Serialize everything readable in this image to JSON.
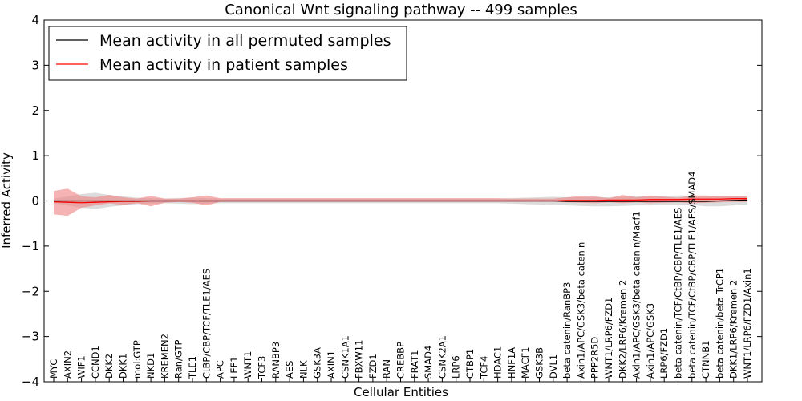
{
  "chart_data": {
    "type": "line",
    "title": "Canonical Wnt signaling pathway -- 499 samples",
    "xlabel": "Cellular Entities",
    "ylabel": "Inferred Activity",
    "ylim": [
      -4,
      4
    ],
    "yticks": [
      4,
      3,
      2,
      1,
      0,
      -1,
      -2,
      -3,
      -4
    ],
    "ytick_labels": [
      "4",
      "3",
      "2",
      "1",
      "0",
      "−1",
      "−2",
      "−3",
      "−4"
    ],
    "grid": false,
    "legend_position": "top-left",
    "colors": {
      "permuted": "#000000",
      "patient": "#ff0000",
      "permuted_band": "#bfbfbf",
      "patient_band": "#f08080"
    },
    "categories": [
      "MYC",
      "AXIN2",
      "WIF1",
      "CCND1",
      "DKK2",
      "DKK1",
      "mol:GTP",
      "NKD1",
      "KREMEN2",
      "Ran/GTP",
      "TLE1",
      "CtBP/CBP/TCF/TLE1/AES",
      "APC",
      "LEF1",
      "WNT1",
      "TCF3",
      "RANBP3",
      "AES",
      "NLK",
      "GSK3A",
      "AXIN1",
      "CSNK1A1",
      "FBXW11",
      "FZD1",
      "RAN",
      "CREBBP",
      "FRAT1",
      "SMAD4",
      "CSNK2A1",
      "LRP6",
      "CTBP1",
      "TCF4",
      "HDAC1",
      "HNF1A",
      "MACF1",
      "GSK3B",
      "DVL1",
      "beta catenin/RanBP3",
      "Axin1/APC/GSK3/beta catenin",
      "PPP2R5D",
      "WNT1/LRP6/FZD1",
      "DKK2/LRP6/Kremen 2",
      "Axin1/APC/GSK3/beta catenin/Macf1",
      "Axin1/APC/GSK3",
      "LRP6/FZD1",
      "beta catenin/TCF/CtBP/CBP/TLE1/AES",
      "beta catenin/TCF/CtBP/CBP/TLE1/AES/SMAD4",
      "CTNNB1",
      "beta catenin/beta TrCP1",
      "DKK1/LRP6/Kremen 2",
      "WNT1/LRP6/FZD1/Axin1"
    ],
    "series": [
      {
        "name": "Mean activity in all permuted samples",
        "values": [
          0,
          0,
          0,
          0,
          0,
          0,
          0,
          0,
          0,
          0,
          0,
          0,
          0,
          0,
          0,
          0,
          0,
          0,
          0,
          0,
          0,
          0,
          0,
          0,
          0,
          0,
          0,
          0,
          0,
          0,
          0,
          0,
          0,
          0,
          0,
          0,
          0,
          -0.01,
          -0.01,
          -0.01,
          -0.01,
          -0.01,
          -0.01,
          -0.01,
          -0.01,
          -0.01,
          -0.01,
          -0.01,
          0,
          0.01,
          0.02
        ],
        "lower": [
          -0.05,
          -0.1,
          -0.15,
          -0.18,
          -0.13,
          -0.1,
          -0.07,
          -0.06,
          -0.05,
          -0.06,
          -0.07,
          -0.06,
          -0.05,
          -0.05,
          -0.05,
          -0.05,
          -0.05,
          -0.05,
          -0.05,
          -0.05,
          -0.05,
          -0.05,
          -0.05,
          -0.05,
          -0.05,
          -0.05,
          -0.05,
          -0.05,
          -0.05,
          -0.05,
          -0.05,
          -0.05,
          -0.05,
          -0.06,
          -0.07,
          -0.08,
          -0.09,
          -0.1,
          -0.11,
          -0.12,
          -0.12,
          -0.11,
          -0.1,
          -0.1,
          -0.09,
          -0.08,
          -0.09,
          -0.12,
          -0.12,
          -0.1,
          -0.08
        ],
        "upper": [
          0.05,
          0.1,
          0.15,
          0.18,
          0.13,
          0.1,
          0.07,
          0.06,
          0.05,
          0.06,
          0.07,
          0.06,
          0.05,
          0.05,
          0.05,
          0.05,
          0.05,
          0.05,
          0.05,
          0.05,
          0.05,
          0.05,
          0.05,
          0.05,
          0.05,
          0.05,
          0.05,
          0.05,
          0.05,
          0.05,
          0.05,
          0.05,
          0.05,
          0.06,
          0.07,
          0.08,
          0.09,
          0.08,
          0.08,
          0.08,
          0.08,
          0.09,
          0.1,
          0.1,
          0.11,
          0.12,
          0.12,
          0.11,
          0.11,
          0.11,
          0.11
        ]
      },
      {
        "name": "Mean activity in patient samples",
        "values": [
          -0.02,
          -0.03,
          -0.04,
          -0.03,
          -0.02,
          -0.01,
          -0.01,
          0,
          0,
          0,
          0,
          0,
          0,
          0,
          0,
          0,
          0,
          0,
          0,
          0,
          0,
          0,
          0,
          0,
          0,
          0,
          0,
          0,
          0,
          0,
          0,
          0,
          0,
          0,
          0,
          0,
          0,
          0.01,
          0.01,
          0.01,
          0.02,
          0.02,
          0.02,
          0.03,
          0.03,
          0.03,
          0.04,
          0.04,
          0.04,
          0.05,
          0.05
        ],
        "lower": [
          -0.3,
          -0.33,
          -0.15,
          -0.1,
          -0.05,
          -0.09,
          -0.05,
          -0.12,
          -0.04,
          -0.02,
          -0.04,
          -0.1,
          -0.02,
          -0.02,
          -0.02,
          -0.02,
          -0.02,
          -0.02,
          -0.02,
          -0.02,
          -0.02,
          -0.02,
          -0.02,
          -0.02,
          -0.02,
          -0.02,
          -0.02,
          -0.02,
          -0.02,
          -0.02,
          -0.02,
          -0.02,
          -0.02,
          -0.02,
          -0.02,
          -0.02,
          -0.02,
          -0.03,
          -0.04,
          -0.05,
          -0.03,
          -0.05,
          -0.03,
          -0.05,
          -0.04,
          -0.03,
          -0.05,
          -0.04,
          -0.03,
          -0.02,
          -0.02
        ],
        "upper": [
          0.22,
          0.27,
          0.1,
          0.08,
          0.13,
          0.08,
          0.05,
          0.11,
          0.05,
          0.05,
          0.08,
          0.12,
          0.06,
          0.06,
          0.06,
          0.06,
          0.06,
          0.06,
          0.06,
          0.06,
          0.06,
          0.06,
          0.06,
          0.06,
          0.06,
          0.06,
          0.06,
          0.06,
          0.06,
          0.06,
          0.06,
          0.06,
          0.06,
          0.05,
          0.05,
          0.05,
          0.05,
          0.08,
          0.11,
          0.1,
          0.06,
          0.13,
          0.08,
          0.12,
          0.09,
          0.07,
          0.12,
          0.12,
          0.1,
          0.1,
          0.1
        ]
      }
    ]
  }
}
